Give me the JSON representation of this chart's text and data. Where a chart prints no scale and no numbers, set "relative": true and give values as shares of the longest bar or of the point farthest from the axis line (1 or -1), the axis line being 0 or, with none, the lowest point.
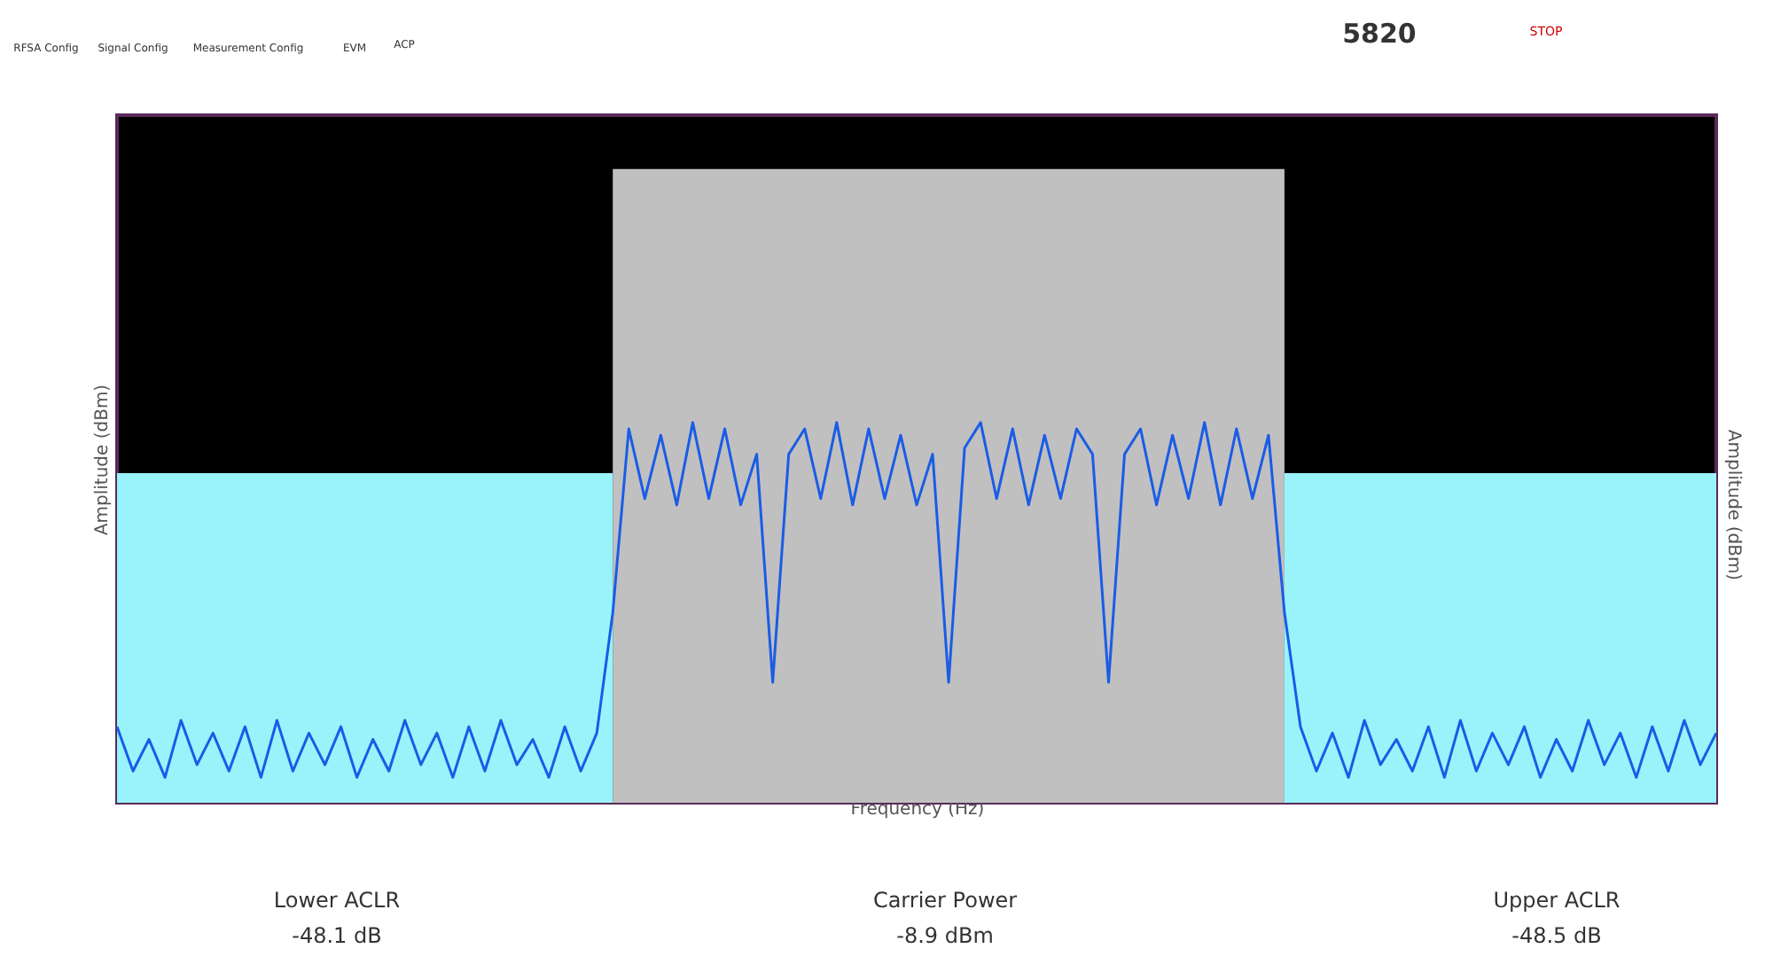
{
  "chart_data": {
    "type": "line",
    "relative": true,
    "tick_labels": false,
    "grid": false,
    "xlabel": "Frequency (Hz)",
    "ylabel": "Amplitude (dBm)",
    "y2label": "Amplitude (dBm)",
    "categories": [
      null,
      null,
      null,
      null,
      null,
      null,
      null,
      null,
      null,
      null,
      null,
      null,
      null,
      null,
      null,
      null,
      null,
      null,
      null,
      null,
      null,
      null,
      null,
      null,
      null,
      null,
      null,
      null,
      null,
      null,
      null,
      null,
      null,
      null,
      null,
      null,
      null,
      null,
      null,
      null,
      null,
      null,
      null,
      null,
      null,
      null,
      null,
      null,
      null,
      null,
      null,
      null,
      null,
      null,
      null,
      null,
      null,
      null,
      null,
      null,
      null,
      null,
      null,
      null,
      null,
      null,
      null,
      null,
      null,
      null,
      null,
      null,
      null,
      null,
      null,
      null,
      null,
      null,
      null,
      null,
      null,
      null,
      null,
      null,
      null,
      null,
      null,
      null,
      null,
      null,
      null,
      null,
      null,
      null,
      null,
      null,
      null,
      null,
      null,
      null,
      null
    ],
    "series": [
      {
        "type": "area",
        "color": "#c0c0c0",
        "values": [
          null,
          null,
          null,
          null,
          null,
          null,
          null,
          null,
          null,
          null,
          null,
          null,
          null,
          null,
          null,
          null,
          null,
          null,
          null,
          null,
          null,
          null,
          null,
          null,
          null,
          null,
          null,
          null,
          null,
          null,
          null,
          1,
          1,
          1,
          1,
          1,
          1,
          1,
          1,
          1,
          1,
          1,
          1,
          1,
          1,
          1,
          1,
          1,
          1,
          1,
          1,
          1,
          1,
          1,
          1,
          1,
          1,
          1,
          1,
          1,
          1,
          1,
          1,
          1,
          1,
          1,
          1,
          1,
          1,
          1,
          1,
          1,
          1,
          1,
          null,
          null,
          null,
          null,
          null,
          null,
          null,
          null,
          null,
          null,
          null,
          null,
          null,
          null,
          null,
          null,
          null,
          null,
          null,
          null,
          null,
          null,
          null,
          null,
          null,
          null,
          null
        ]
      },
      {
        "type": "area",
        "color": "#99f3fb",
        "values": [
          0.52,
          0.52,
          0.52,
          0.52,
          0.52,
          0.52,
          0.52,
          0.52,
          0.52,
          0.52,
          0.52,
          0.52,
          0.52,
          0.52,
          0.52,
          0.52,
          0.52,
          0.52,
          0.52,
          0.52,
          0.52,
          0.52,
          0.52,
          0.52,
          0.52,
          0.52,
          0.52,
          0.52,
          0.52,
          0.52,
          0.52,
          0.52,
          null,
          null,
          null,
          null,
          null,
          null,
          null,
          null,
          null,
          null,
          null,
          null,
          null,
          null,
          null,
          null,
          null,
          null,
          null,
          null,
          null,
          null,
          null,
          null,
          null,
          null,
          null,
          null,
          null,
          null,
          null,
          null,
          null,
          null,
          null,
          null,
          null,
          null,
          null,
          null,
          null,
          0.52,
          0.52,
          0.52,
          0.52,
          0.52,
          0.52,
          0.52,
          0.52,
          0.52,
          0.52,
          0.52,
          0.52,
          0.52,
          0.52,
          0.52,
          0.52,
          0.52,
          0.52,
          0.52,
          0.52,
          0.52,
          0.52,
          0.52,
          0.52,
          0.52,
          0.52,
          0.52,
          0.52
        ]
      },
      {
        "color": "#1a5ce6",
        "values": [
          0.12,
          0.05,
          0.1,
          0.04,
          0.13,
          0.06,
          0.11,
          0.05,
          0.12,
          0.04,
          0.13,
          0.05,
          0.11,
          0.06,
          0.12,
          0.04,
          0.1,
          0.05,
          0.13,
          0.06,
          0.11,
          0.04,
          0.12,
          0.05,
          0.13,
          0.06,
          0.1,
          0.04,
          0.12,
          0.05,
          0.11,
          0.3,
          0.59,
          0.48,
          0.58,
          0.47,
          0.6,
          0.48,
          0.59,
          0.47,
          0.55,
          0.19,
          0.55,
          0.59,
          0.48,
          0.6,
          0.47,
          0.59,
          0.48,
          0.58,
          0.47,
          0.55,
          0.19,
          0.56,
          0.6,
          0.48,
          0.59,
          0.47,
          0.58,
          0.48,
          0.59,
          0.55,
          0.19,
          0.55,
          0.59,
          0.47,
          0.58,
          0.48,
          0.6,
          0.47,
          0.59,
          0.48,
          0.58,
          0.3,
          0.12,
          0.05,
          0.11,
          0.04,
          0.13,
          0.06,
          0.1,
          0.05,
          0.12,
          0.04,
          0.13,
          0.05,
          0.11,
          0.06,
          0.12,
          0.04,
          0.1,
          0.05,
          0.13,
          0.06,
          0.11,
          0.04,
          0.12,
          0.05,
          0.13,
          0.06,
          0.11
        ]
      }
    ],
    "annotations": [
      "RFSA Config",
      "Signal Config",
      "Measurement Config",
      "EVM",
      "ACP",
      "5820",
      "STOP",
      "Lower ACLR",
      "-48.1 dB",
      "Carrier Power",
      "-8.9 dBm",
      "Upper ACLR",
      "-48.5 dB"
    ]
  }
}
